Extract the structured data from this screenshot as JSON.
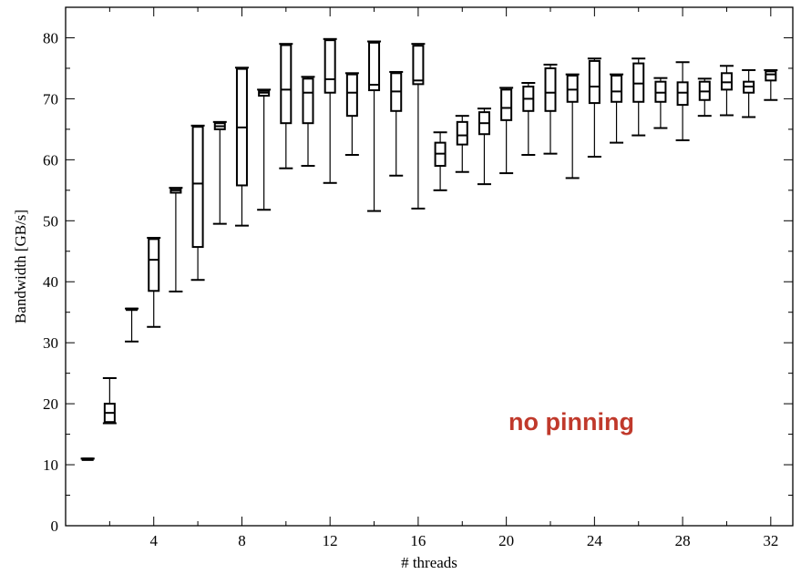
{
  "chart_data": {
    "type": "boxplot",
    "xlabel": "# threads",
    "ylabel": "Bandwidth [GB/s]",
    "xlim": [
      0,
      33
    ],
    "ylim": [
      0,
      85
    ],
    "x_ticks": [
      4,
      8,
      12,
      16,
      20,
      24,
      28,
      32
    ],
    "y_ticks": [
      0,
      10,
      20,
      30,
      40,
      50,
      60,
      70,
      80
    ],
    "grid": false,
    "annotation": {
      "text": "no pinning",
      "color": "#c0392b"
    },
    "boxes": [
      {
        "x": 1,
        "min": 11.0,
        "q1": 11.0,
        "median": 11.0,
        "q3": 11.0,
        "max": 11.0
      },
      {
        "x": 2,
        "min": 16.8,
        "q1": 17.0,
        "median": 18.5,
        "q3": 20.0,
        "max": 24.2
      },
      {
        "x": 3,
        "min": 30.2,
        "q1": 35.4,
        "median": 35.4,
        "q3": 35.6,
        "max": 35.6
      },
      {
        "x": 4,
        "min": 32.6,
        "q1": 38.5,
        "median": 43.6,
        "q3": 47.0,
        "max": 47.2
      },
      {
        "x": 5,
        "min": 38.4,
        "q1": 54.6,
        "median": 55.0,
        "q3": 55.3,
        "max": 55.4
      },
      {
        "x": 6,
        "min": 40.3,
        "q1": 45.7,
        "median": 56.1,
        "q3": 65.4,
        "max": 65.6
      },
      {
        "x": 7,
        "min": 49.5,
        "q1": 65.0,
        "median": 65.5,
        "q3": 66.0,
        "max": 66.2
      },
      {
        "x": 8,
        "min": 49.2,
        "q1": 55.8,
        "median": 65.3,
        "q3": 74.9,
        "max": 75.1
      },
      {
        "x": 9,
        "min": 51.8,
        "q1": 70.5,
        "median": 71.0,
        "q3": 71.3,
        "max": 71.5
      },
      {
        "x": 10,
        "min": 58.6,
        "q1": 66.0,
        "median": 71.5,
        "q3": 78.8,
        "max": 79.0
      },
      {
        "x": 11,
        "min": 59.0,
        "q1": 66.0,
        "median": 71.0,
        "q3": 73.3,
        "max": 73.6
      },
      {
        "x": 12,
        "min": 56.2,
        "q1": 71.0,
        "median": 73.2,
        "q3": 79.6,
        "max": 79.8
      },
      {
        "x": 13,
        "min": 60.8,
        "q1": 67.2,
        "median": 71.0,
        "q3": 74.0,
        "max": 74.2
      },
      {
        "x": 14,
        "min": 51.6,
        "q1": 71.4,
        "median": 72.3,
        "q3": 79.2,
        "max": 79.4
      },
      {
        "x": 15,
        "min": 57.4,
        "q1": 68.0,
        "median": 71.2,
        "q3": 74.2,
        "max": 74.4
      },
      {
        "x": 16,
        "min": 52.0,
        "q1": 72.4,
        "median": 73.0,
        "q3": 78.7,
        "max": 79.0
      },
      {
        "x": 17,
        "min": 55.0,
        "q1": 59.0,
        "median": 61.0,
        "q3": 62.8,
        "max": 64.5
      },
      {
        "x": 18,
        "min": 58.0,
        "q1": 62.5,
        "median": 64.0,
        "q3": 66.2,
        "max": 67.2
      },
      {
        "x": 19,
        "min": 56.0,
        "q1": 64.2,
        "median": 66.0,
        "q3": 67.8,
        "max": 68.4
      },
      {
        "x": 20,
        "min": 57.8,
        "q1": 66.5,
        "median": 68.5,
        "q3": 71.5,
        "max": 71.8
      },
      {
        "x": 21,
        "min": 60.8,
        "q1": 68.0,
        "median": 70.0,
        "q3": 72.0,
        "max": 72.6
      },
      {
        "x": 22,
        "min": 61.0,
        "q1": 68.0,
        "median": 71.0,
        "q3": 75.0,
        "max": 75.6
      },
      {
        "x": 23,
        "min": 57.0,
        "q1": 69.5,
        "median": 71.5,
        "q3": 73.8,
        "max": 74.0
      },
      {
        "x": 24,
        "min": 60.5,
        "q1": 69.3,
        "median": 72.0,
        "q3": 76.2,
        "max": 76.6
      },
      {
        "x": 25,
        "min": 62.8,
        "q1": 69.5,
        "median": 71.2,
        "q3": 73.8,
        "max": 74.0
      },
      {
        "x": 26,
        "min": 64.0,
        "q1": 69.5,
        "median": 72.5,
        "q3": 75.8,
        "max": 76.6
      },
      {
        "x": 27,
        "min": 65.2,
        "q1": 69.5,
        "median": 71.0,
        "q3": 72.8,
        "max": 73.4
      },
      {
        "x": 28,
        "min": 63.2,
        "q1": 69.0,
        "median": 71.0,
        "q3": 72.7,
        "max": 76.0
      },
      {
        "x": 29,
        "min": 67.2,
        "q1": 69.8,
        "median": 71.2,
        "q3": 72.8,
        "max": 73.3
      },
      {
        "x": 30,
        "min": 67.3,
        "q1": 71.5,
        "median": 72.7,
        "q3": 74.2,
        "max": 75.4
      },
      {
        "x": 31,
        "min": 67.0,
        "q1": 71.0,
        "median": 72.0,
        "q3": 72.8,
        "max": 74.7
      },
      {
        "x": 32,
        "min": 69.8,
        "q1": 73.0,
        "median": 74.0,
        "q3": 74.5,
        "max": 74.7
      }
    ]
  }
}
